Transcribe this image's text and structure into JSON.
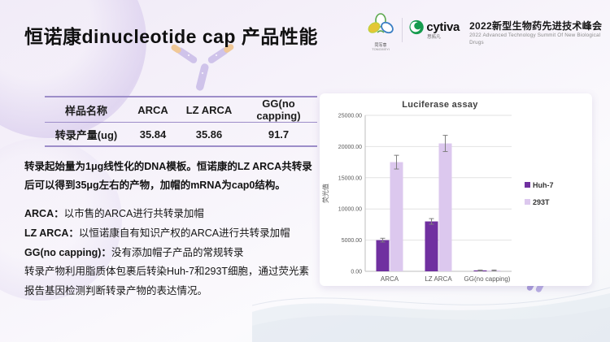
{
  "header": {
    "title": "恒诺康dinucleotide cap 产品性能",
    "logos": {
      "tongxieyi": {
        "name": "同写意",
        "subtext": "TONGXIEYI"
      },
      "cytiva": {
        "wordmark": "cytiva",
        "subtext": "思拓凡"
      },
      "summit": {
        "title": "2022新型生物药先进技术峰会",
        "subtitle": "2022 Advanced Technology Summit Of New Biological Drugs"
      }
    }
  },
  "table": {
    "headers": [
      "样品名称",
      "ARCA",
      "LZ ARCA",
      "GG(no capping)"
    ],
    "row": [
      "转录产量(ug)",
      "35.84",
      "35.86",
      "91.7"
    ]
  },
  "paragraphs": {
    "intro": "转录起始量为1μg线性化的DNA模板。恒诺康的LZ ARCA共转录后可以得到35μg左右的产物，加帽的mRNA为cap0结构。",
    "items": [
      {
        "label": "ARCA：",
        "text": "以市售的ARCA进行共转录加帽"
      },
      {
        "label": "LZ ARCA：",
        "text": "以恒诺康自有知识产权的ARCA进行共转录加帽"
      },
      {
        "label": "GG(no capping)：",
        "text": "没有添加帽子产品的常规转录"
      }
    ],
    "footer": "转录产物利用脂质体包裹后转染Huh-7和293T细胞，通过荧光素报告基因检测判断转录产物的表达情况。"
  },
  "chart_data": {
    "type": "bar",
    "title": "Luciferase assay",
    "ylabel": "荧光值",
    "xlabel": "",
    "categories": [
      "ARCA",
      "LZ ARCA",
      "GG(no capping)"
    ],
    "series": [
      {
        "name": "Huh-7",
        "color": "#7030A0",
        "values": [
          5000,
          8000,
          150
        ],
        "errors": [
          300,
          450,
          60
        ]
      },
      {
        "name": "293T",
        "color": "#DCC8EE",
        "values": [
          17500,
          20500,
          150
        ],
        "errors": [
          1100,
          1300,
          60
        ]
      }
    ],
    "ylim": [
      0,
      25000
    ],
    "ytick_labels": [
      "0.00",
      "5000.00",
      "10000.00",
      "15000.00",
      "20000.00",
      "25000.00"
    ],
    "grid": true,
    "legend_position": "right"
  },
  "colors": {
    "accent_purple": "#7030A0",
    "light_purple": "#DCC8EE",
    "table_rule": "#9D8DC9",
    "cytiva_green": "#169B4E"
  }
}
